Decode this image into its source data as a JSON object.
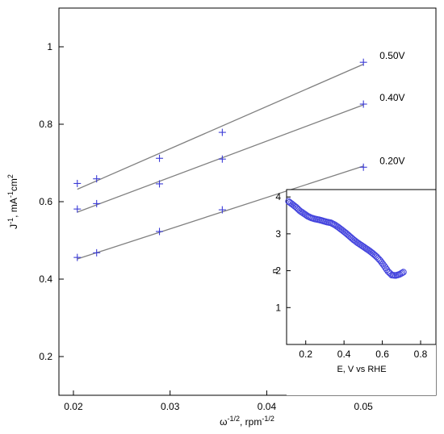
{
  "chart_data": [
    {
      "type": "scatter",
      "role": "main",
      "xlabel": "ω^-1/2 , rpm^-1/2",
      "ylabel": "J^-1 , mA^-1cm^2",
      "xlim": [
        0.0185,
        0.0575
      ],
      "ylim": [
        0.1,
        1.1
      ],
      "x_ticks": [
        0.02,
        0.03,
        0.04,
        0.05
      ],
      "x_tick_labels": [
        "0.02",
        "0.03",
        "0.04",
        "0.05"
      ],
      "y_ticks": [
        0.2,
        0.4,
        0.6,
        0.8,
        1.0
      ],
      "y_tick_labels": [
        "0.2",
        "0.4",
        "0.6",
        "0.8",
        "1"
      ],
      "grid": false,
      "marker": "+",
      "marker_color": "#3b3bd6",
      "fit_line_color": "#808080",
      "series": [
        {
          "name": "0.50V",
          "x": [
            0.0204,
            0.0224,
            0.0289,
            0.0354,
            0.05
          ],
          "y": [
            0.647,
            0.659,
            0.712,
            0.779,
            0.96
          ],
          "fit": [
            [
              0.0204,
              0.632
            ],
            [
              0.05,
              0.955
            ]
          ]
        },
        {
          "name": "0.40V",
          "x": [
            0.0204,
            0.0224,
            0.0289,
            0.0354,
            0.05
          ],
          "y": [
            0.581,
            0.595,
            0.646,
            0.71,
            0.852
          ],
          "fit": [
            [
              0.0204,
              0.573
            ],
            [
              0.05,
              0.85
            ]
          ]
        },
        {
          "name": "0.20V",
          "x": [
            0.0204,
            0.0224,
            0.0289,
            0.0354,
            0.05
          ],
          "y": [
            0.456,
            0.468,
            0.523,
            0.579,
            0.689
          ],
          "fit": [
            [
              0.0204,
              0.452
            ],
            [
              0.05,
              0.692
            ]
          ]
        }
      ]
    },
    {
      "type": "scatter",
      "role": "inset",
      "xlabel": "E, V vs RHE",
      "ylabel": "n",
      "xlim": [
        0.1,
        0.88
      ],
      "ylim": [
        0,
        4.2
      ],
      "x_ticks": [
        0.2,
        0.4,
        0.6,
        0.8
      ],
      "x_tick_labels": [
        "0.2",
        "0.4",
        "0.6",
        "0.8"
      ],
      "y_ticks": [
        1,
        2,
        3,
        4
      ],
      "y_tick_labels": [
        "1",
        "2",
        "3",
        "4"
      ],
      "grid": false,
      "marker": "open-circle",
      "marker_color": "#4444dd",
      "curve": {
        "x": [
          0.11,
          0.13,
          0.15,
          0.17,
          0.19,
          0.21,
          0.23,
          0.25,
          0.27,
          0.29,
          0.31,
          0.33,
          0.35,
          0.37,
          0.39,
          0.41,
          0.43,
          0.45,
          0.47,
          0.49,
          0.51,
          0.53,
          0.55,
          0.57,
          0.59,
          0.61,
          0.63,
          0.65,
          0.67,
          0.69,
          0.71
        ],
        "y": [
          3.88,
          3.8,
          3.72,
          3.62,
          3.55,
          3.48,
          3.43,
          3.4,
          3.38,
          3.35,
          3.32,
          3.3,
          3.25,
          3.18,
          3.1,
          3.02,
          2.93,
          2.84,
          2.76,
          2.69,
          2.62,
          2.55,
          2.47,
          2.38,
          2.27,
          2.13,
          1.98,
          1.88,
          1.87,
          1.9,
          1.96
        ]
      }
    }
  ]
}
